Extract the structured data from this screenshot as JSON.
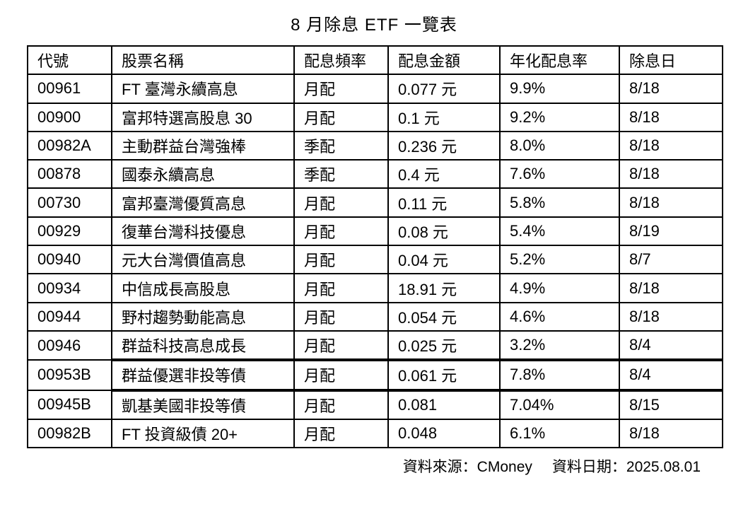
{
  "title": "8 月除息 ETF 一覽表",
  "table": {
    "headers": [
      "代號",
      "股票名稱",
      "配息頻率",
      "配息金額",
      "年化配息率",
      "除息日"
    ],
    "rows": [
      {
        "code": "00961",
        "name": "FT 臺灣永續高息",
        "freq": "月配",
        "amount": "0.077 元",
        "yield": "9.9%",
        "date": "8/18",
        "highlighted": false
      },
      {
        "code": "00900",
        "name": "富邦特選高股息 30",
        "freq": "月配",
        "amount": "0.1 元",
        "yield": "9.2%",
        "date": "8/18",
        "highlighted": false
      },
      {
        "code": "00982A",
        "name": "主動群益台灣強棒",
        "freq": "季配",
        "amount": "0.236 元",
        "yield": "8.0%",
        "date": "8/18",
        "highlighted": false
      },
      {
        "code": "00878",
        "name": "國泰永續高息",
        "freq": "季配",
        "amount": "0.4 元",
        "yield": "7.6%",
        "date": "8/18",
        "highlighted": false
      },
      {
        "code": "00730",
        "name": "富邦臺灣優質高息",
        "freq": "月配",
        "amount": "0.11 元",
        "yield": "5.8%",
        "date": "8/18",
        "highlighted": false
      },
      {
        "code": "00929",
        "name": "復華台灣科技優息",
        "freq": "月配",
        "amount": "0.08 元",
        "yield": "5.4%",
        "date": "8/19",
        "highlighted": false
      },
      {
        "code": "00940",
        "name": "元大台灣價值高息",
        "freq": "月配",
        "amount": "0.04 元",
        "yield": "5.2%",
        "date": "8/7",
        "highlighted": false
      },
      {
        "code": "00934",
        "name": "中信成長高股息",
        "freq": "月配",
        "amount": "18.91 元",
        "yield": "4.9%",
        "date": "8/18",
        "highlighted": false
      },
      {
        "code": "00944",
        "name": "野村趨勢動能高息",
        "freq": "月配",
        "amount": "0.054 元",
        "yield": "4.6%",
        "date": "8/18",
        "highlighted": false
      },
      {
        "code": "00946",
        "name": "群益科技高息成長",
        "freq": "月配",
        "amount": "0.025 元",
        "yield": "3.2%",
        "date": "8/4",
        "highlighted": false
      },
      {
        "code": "00953B",
        "name": "群益優選非投等債",
        "freq": "月配",
        "amount": "0.061 元",
        "yield": "7.8%",
        "date": "8/4",
        "highlighted": true
      },
      {
        "code": "00945B",
        "name": "凱基美國非投等債",
        "freq": "月配",
        "amount": "0.081",
        "yield": "7.04%",
        "date": "8/15",
        "highlighted": false
      },
      {
        "code": "00982B",
        "name": "FT 投資級債 20+",
        "freq": "月配",
        "amount": "0.048",
        "yield": "6.1%",
        "date": "8/18",
        "highlighted": false
      }
    ]
  },
  "footer": {
    "source": "資料來源：CMoney",
    "date": "資料日期：2025.08.01"
  },
  "colors": {
    "text": "#000000",
    "background": "#ffffff",
    "border": "#000000"
  },
  "chart_data": {
    "type": "table",
    "title": "8 月除息 ETF 一覽表",
    "columns": [
      "代號",
      "股票名稱",
      "配息頻率",
      "配息金額",
      "年化配息率",
      "除息日"
    ],
    "rows": [
      [
        "00961",
        "FT 臺灣永續高息",
        "月配",
        "0.077 元",
        "9.9%",
        "8/18"
      ],
      [
        "00900",
        "富邦特選高股息 30",
        "月配",
        "0.1 元",
        "9.2%",
        "8/18"
      ],
      [
        "00982A",
        "主動群益台灣強棒",
        "季配",
        "0.236 元",
        "8.0%",
        "8/18"
      ],
      [
        "00878",
        "國泰永續高息",
        "季配",
        "0.4 元",
        "7.6%",
        "8/18"
      ],
      [
        "00730",
        "富邦臺灣優質高息",
        "月配",
        "0.11 元",
        "5.8%",
        "8/18"
      ],
      [
        "00929",
        "復華台灣科技優息",
        "月配",
        "0.08 元",
        "5.4%",
        "8/19"
      ],
      [
        "00940",
        "元大台灣價值高息",
        "月配",
        "0.04 元",
        "5.2%",
        "8/7"
      ],
      [
        "00934",
        "中信成長高股息",
        "月配",
        "18.91 元",
        "4.9%",
        "8/18"
      ],
      [
        "00944",
        "野村趨勢動能高息",
        "月配",
        "0.054 元",
        "4.6%",
        "8/18"
      ],
      [
        "00946",
        "群益科技高息成長",
        "月配",
        "0.025 元",
        "3.2%",
        "8/4"
      ],
      [
        "00953B",
        "群益優選非投等債",
        "月配",
        "0.061 元",
        "7.8%",
        "8/4"
      ],
      [
        "00945B",
        "凱基美國非投等債",
        "月配",
        "0.081",
        "7.04%",
        "8/15"
      ],
      [
        "00982B",
        "FT 投資級債 20+",
        "月配",
        "0.048",
        "6.1%",
        "8/18"
      ]
    ]
  }
}
